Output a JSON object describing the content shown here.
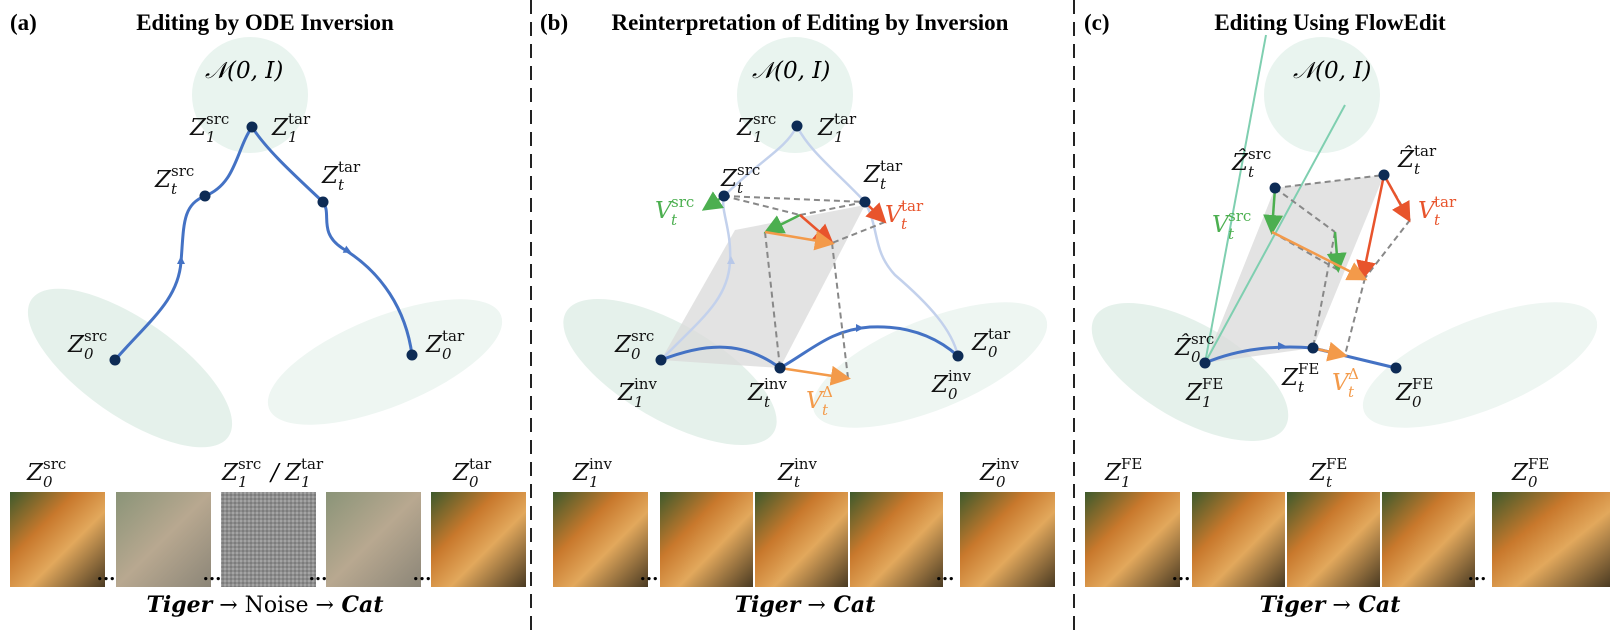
{
  "strip_gap": "...",
  "panels": [
    {
      "label": "(a)",
      "title": "Editing by ODE Inversion",
      "noise": "𝒩(0, I)",
      "diagram_labels": [
        {
          "base": "Z",
          "sub": "1",
          "sup": "src"
        },
        {
          "base": "Z",
          "sub": "1",
          "sup": "tar"
        },
        {
          "base": "Z",
          "sub": "t",
          "sup": "src"
        },
        {
          "base": "Z",
          "sub": "t",
          "sup": "tar"
        },
        {
          "base": "Z",
          "sub": "0",
          "sup": "src"
        },
        {
          "base": "Z",
          "sub": "0",
          "sup": "tar"
        }
      ],
      "strip_labels": [
        [
          {
            "base": "Z",
            "sub": "0",
            "sup": "src"
          }
        ],
        [
          {
            "base": "Z",
            "sub": "1",
            "sup": "src"
          },
          "/",
          {
            "base": "Z",
            "sub": "1",
            "sup": "tar"
          }
        ],
        [
          {
            "base": "Z",
            "sub": "0",
            "sup": "tar"
          }
        ]
      ],
      "caption": [
        "Tiger",
        "→ Noise →",
        "Cat"
      ]
    },
    {
      "label": "(b)",
      "title": "Reinterpretation of Editing by Inversion",
      "noise": "𝒩(0, I)",
      "diagram_labels": [
        {
          "base": "Z",
          "sub": "1",
          "sup": "src"
        },
        {
          "base": "Z",
          "sub": "1",
          "sup": "tar"
        },
        {
          "base": "Z",
          "sub": "t",
          "sup": "src"
        },
        {
          "base": "Z",
          "sub": "t",
          "sup": "tar"
        },
        {
          "base": "V",
          "sub": "t",
          "sup": "src"
        },
        {
          "base": "V",
          "sub": "t",
          "sup": "tar"
        },
        {
          "base": "Z",
          "sub": "0",
          "sup": "src"
        },
        {
          "base": "Z",
          "sub": "1",
          "sup": "inv"
        },
        {
          "base": "Z",
          "sub": "t",
          "sup": "inv"
        },
        {
          "base": "V",
          "sub": "t",
          "sup": "Δ"
        },
        {
          "base": "Z",
          "sub": "0",
          "sup": "tar"
        },
        {
          "base": "Z",
          "sub": "0",
          "sup": "inv"
        }
      ],
      "strip_labels": [
        [
          {
            "base": "Z",
            "sub": "1",
            "sup": "inv"
          }
        ],
        [
          {
            "base": "Z",
            "sub": "t",
            "sup": "inv"
          }
        ],
        [
          {
            "base": "Z",
            "sub": "0",
            "sup": "inv"
          }
        ]
      ],
      "caption": [
        "Tiger",
        "→",
        "Cat"
      ]
    },
    {
      "label": "(c)",
      "title": "Editing Using FlowEdit",
      "noise": "𝒩(0, I)",
      "diagram_labels": [
        {
          "base": "Ẑ",
          "sub": "t",
          "sup": "src"
        },
        {
          "base": "Ẑ",
          "sub": "t",
          "sup": "tar"
        },
        {
          "base": "V",
          "sub": "t",
          "sup": "src"
        },
        {
          "base": "V",
          "sub": "t",
          "sup": "tar"
        },
        {
          "base": "Ẑ",
          "sub": "0",
          "sup": "src"
        },
        {
          "base": "Z",
          "sub": "1",
          "sup": "FE"
        },
        {
          "base": "Z",
          "sub": "t",
          "sup": "FE"
        },
        {
          "base": "V",
          "sub": "t",
          "sup": "Δ"
        },
        {
          "base": "Z",
          "sub": "0",
          "sup": "FE"
        }
      ],
      "strip_labels": [
        [
          {
            "base": "Z",
            "sub": "1",
            "sup": "FE"
          }
        ],
        [
          {
            "base": "Z",
            "sub": "t",
            "sup": "FE"
          }
        ],
        [
          {
            "base": "Z",
            "sub": "0",
            "sup": "FE"
          }
        ]
      ],
      "caption": [
        "Tiger",
        "→",
        "Cat"
      ]
    }
  ]
}
